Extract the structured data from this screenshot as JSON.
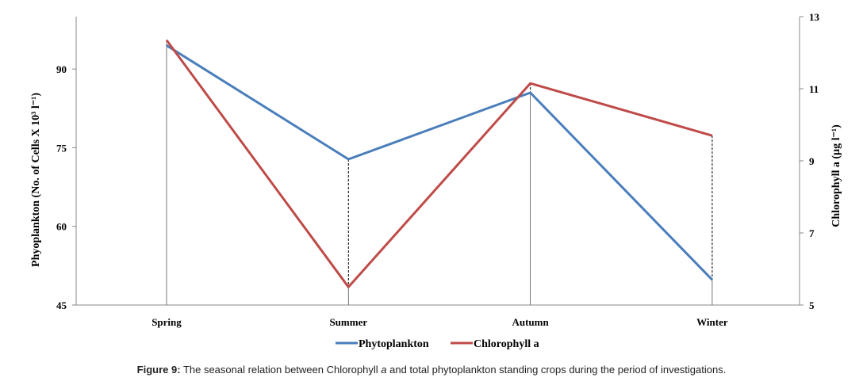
{
  "chart_data": {
    "type": "line",
    "categories": [
      "Spring",
      "Summer",
      "Autumn",
      "Winter"
    ],
    "y_left": {
      "label": "Phyoplankton (No. of Cells X 10³ l⁻¹)",
      "ylim": [
        45,
        100
      ],
      "ticks": [
        45,
        60,
        75,
        90
      ]
    },
    "y_right": {
      "label": "Chlorophyll a (µg l⁻¹)",
      "ylim": [
        5,
        13
      ],
      "ticks": [
        5,
        7,
        9,
        11,
        13
      ]
    },
    "series": [
      {
        "name": "Phytoplankton",
        "axis": "left",
        "color": "#4a7ebb",
        "values": [
          94.5,
          72.8,
          85.5,
          49.8
        ]
      },
      {
        "name": "Chlorophyll a",
        "axis": "right",
        "color": "#be4b48",
        "values": [
          12.35,
          5.5,
          11.15,
          9.7
        ]
      }
    ],
    "drop_lines": true,
    "grid": false,
    "legend": "bottom-center"
  },
  "caption": {
    "label": "Figure 9:",
    "text_before": " The seasonal relation between Chlorophyll ",
    "italic": "a",
    "text_after": " and total phytoplankton standing crops during the period of investigations."
  },
  "legend_labels": [
    "Phytoplankton",
    "Chlorophyll a"
  ]
}
